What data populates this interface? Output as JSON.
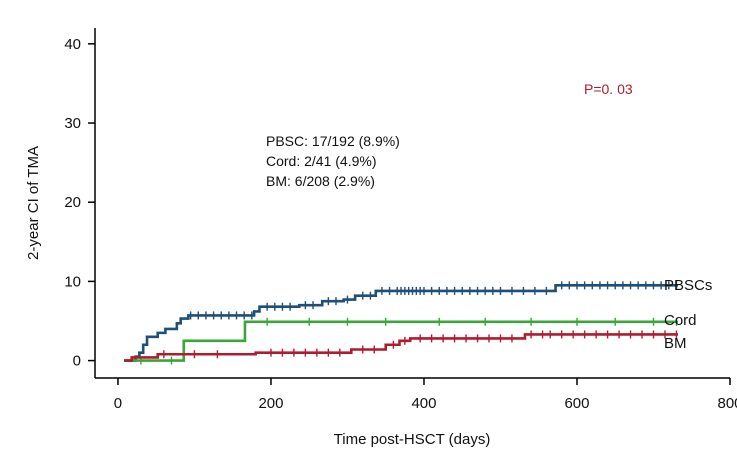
{
  "chart_data": {
    "type": "line",
    "title": "",
    "xlabel": "Time post-HSCT (days)",
    "ylabel": "2-year CI of TMA",
    "xlim": [
      -30,
      800
    ],
    "ylim": [
      -2.2,
      42
    ],
    "xticks": [
      0,
      200,
      400,
      600,
      800
    ],
    "yticks": [
      0,
      10,
      20,
      30,
      40
    ],
    "grid": false,
    "legend": "none",
    "step": true,
    "series": [
      {
        "name": "PBSCs",
        "color": "#1f4e79",
        "points": [
          [
            8,
            0
          ],
          [
            23,
            0.5
          ],
          [
            28,
            1.0
          ],
          [
            33,
            2.0
          ],
          [
            38,
            3.0
          ],
          [
            52,
            3.5
          ],
          [
            62,
            4.0
          ],
          [
            77,
            4.7
          ],
          [
            82,
            5.3
          ],
          [
            92,
            5.7
          ],
          [
            178,
            6.2
          ],
          [
            185,
            6.8
          ],
          [
            237,
            7.0
          ],
          [
            267,
            7.5
          ],
          [
            295,
            7.7
          ],
          [
            310,
            8.2
          ],
          [
            337,
            8.8
          ],
          [
            572,
            9.5
          ],
          [
            732,
            9.5
          ]
        ],
        "censor_x": [
          95,
          105,
          115,
          125,
          135,
          145,
          155,
          165,
          175,
          195,
          205,
          215,
          225,
          245,
          255,
          275,
          285,
          300,
          320,
          330,
          345,
          355,
          365,
          370,
          375,
          380,
          385,
          390,
          395,
          400,
          410,
          420,
          430,
          440,
          450,
          460,
          470,
          480,
          490,
          500,
          515,
          530,
          545,
          560,
          580,
          590,
          600,
          610,
          620,
          630,
          640,
          650,
          660,
          670,
          680,
          690,
          700,
          710,
          720,
          730
        ]
      },
      {
        "name": "Cord",
        "color": "#3aa63a",
        "points": [
          [
            8,
            0
          ],
          [
            83,
            0
          ],
          [
            86,
            2.5
          ],
          [
            163,
            2.5
          ],
          [
            166,
            4.9
          ],
          [
            732,
            4.9
          ]
        ],
        "censor_x": [
          30,
          70,
          195,
          250,
          300,
          350,
          420,
          480,
          540,
          600,
          650,
          700,
          730
        ]
      },
      {
        "name": "BM",
        "color": "#b01c2e",
        "points": [
          [
            8,
            0
          ],
          [
            18,
            0.4
          ],
          [
            52,
            0.8
          ],
          [
            180,
            1.0
          ],
          [
            305,
            1.4
          ],
          [
            350,
            2.0
          ],
          [
            368,
            2.5
          ],
          [
            382,
            2.8
          ],
          [
            532,
            3.3
          ],
          [
            732,
            3.3
          ]
        ],
        "censor_x": [
          60,
          100,
          130,
          200,
          215,
          230,
          245,
          260,
          275,
          290,
          320,
          335,
          360,
          375,
          395,
          410,
          425,
          440,
          455,
          470,
          485,
          500,
          515,
          540,
          555,
          565,
          580,
          595,
          610,
          625,
          640,
          655,
          670,
          685,
          700,
          715,
          730
        ]
      }
    ],
    "annotations": {
      "lines": [
        "PBSC: 17/192 (8.9%)",
        "Cord: 2/41 (4.9%)",
        "BM: 6/208 (2.9%)"
      ],
      "pvalue": "P=0. 03",
      "pvalue_color": "#b01c2e"
    }
  }
}
